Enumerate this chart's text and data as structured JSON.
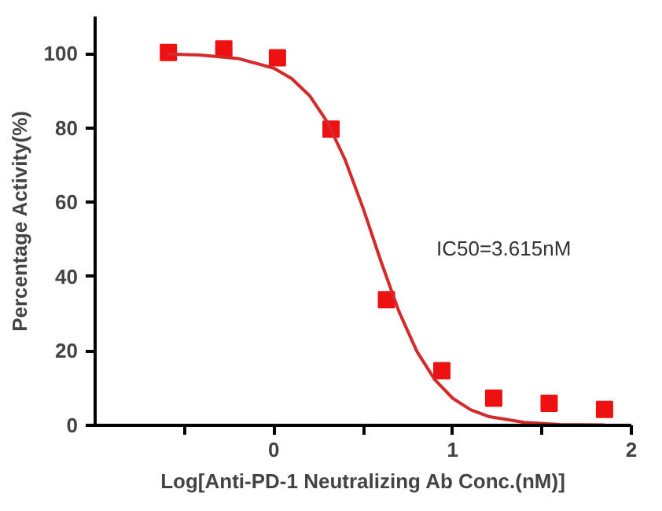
{
  "chart_data": {
    "type": "scatter",
    "xlabel": "Log[Anti-PD-1 Neutralizing Ab Conc.(nM)]",
    "ylabel": "Percentage Activity(%)",
    "annotations": [
      "IC50=3.615nM"
    ],
    "xlim": [
      -1,
      2
    ],
    "xticks": [
      {
        "value": -0.5,
        "label": null
      },
      0,
      {
        "value": 0.5,
        "label": null
      },
      1,
      {
        "value": 1.5,
        "label": null
      },
      2
    ],
    "ylim": [
      0,
      110
    ],
    "yticks": [
      0,
      20,
      40,
      60,
      80,
      100
    ],
    "grid": false,
    "series": [
      {
        "marker": "square",
        "color": "#ee1111",
        "x": [
          -0.59,
          -0.28,
          0.02,
          0.32,
          0.63,
          0.94,
          1.23,
          1.54,
          1.85
        ],
        "values": [
          100.3,
          101.3,
          98.9,
          79.7,
          33.8,
          14.7,
          7.3,
          5.9,
          4.3
        ]
      },
      {
        "type": "line",
        "marker": "none",
        "line_style": "solid",
        "color": "#d42a2a",
        "x": [
          -0.6,
          -0.4,
          -0.2,
          0,
          0.1,
          0.2,
          0.3,
          0.4,
          0.5,
          0.6,
          0.7,
          0.8,
          0.9,
          1.0,
          1.1,
          1.2,
          1.4,
          1.6,
          1.85
        ],
        "values": [
          99.9,
          99.6,
          98.7,
          96.1,
          93.3,
          88.7,
          81.5,
          71.3,
          58.3,
          44.0,
          30.6,
          19.9,
          12.3,
          7.3,
          4.2,
          2.4,
          0.8,
          0.2,
          0.1
        ]
      }
    ]
  }
}
